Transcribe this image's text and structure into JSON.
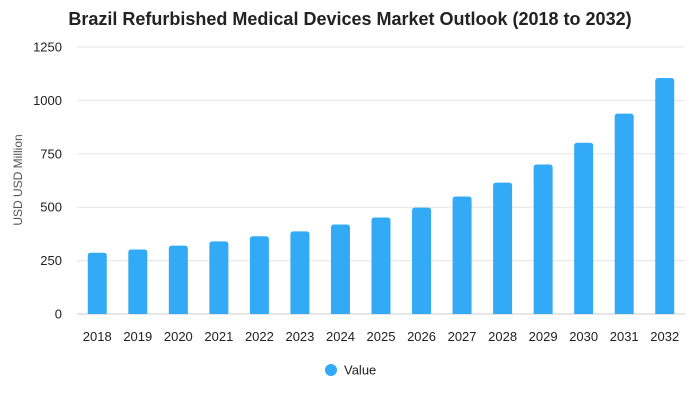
{
  "chart_data": {
    "type": "bar",
    "title": "Brazil Refurbished Medical Devices Market Outlook (2018 to 2032)",
    "xlabel": "",
    "ylabel": "USD USD Million",
    "categories": [
      "2018",
      "2019",
      "2020",
      "2021",
      "2022",
      "2023",
      "2024",
      "2025",
      "2026",
      "2027",
      "2028",
      "2029",
      "2030",
      "2031",
      "2032"
    ],
    "series": [
      {
        "name": "Value",
        "color": "#33aaf5",
        "values": [
          287,
          302,
          320,
          340,
          364,
          387,
          419,
          452,
          498,
          550,
          615,
          700,
          802,
          938,
          1105
        ]
      }
    ],
    "ylim": [
      0,
      1250
    ],
    "yticks": [
      0,
      250,
      500,
      750,
      1000,
      1250
    ],
    "grid": true,
    "legend": "bottom-center"
  }
}
